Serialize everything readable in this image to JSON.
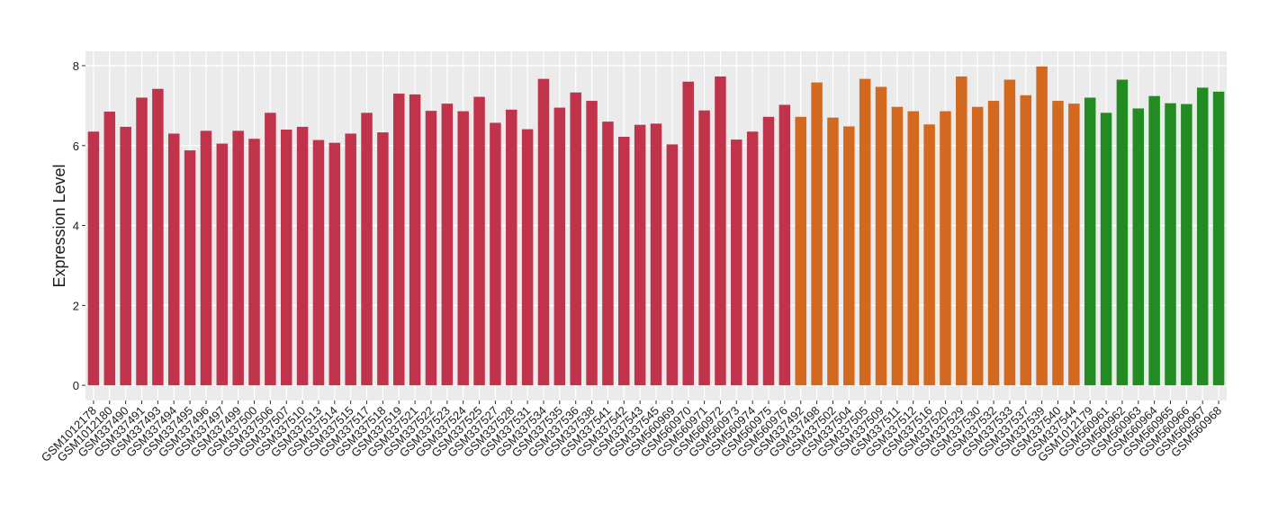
{
  "chart_data": {
    "type": "bar",
    "y_label": "Expression Level",
    "categories": [
      "GSM1012178",
      "GSM1012180",
      "GSM337490",
      "GSM337491",
      "GSM337493",
      "GSM337494",
      "GSM337495",
      "GSM337496",
      "GSM337497",
      "GSM337499",
      "GSM337500",
      "GSM337506",
      "GSM337507",
      "GSM337510",
      "GSM337513",
      "GSM337514",
      "GSM337515",
      "GSM337517",
      "GSM337518",
      "GSM337519",
      "GSM337521",
      "GSM337522",
      "GSM337523",
      "GSM337524",
      "GSM337525",
      "GSM337527",
      "GSM337528",
      "GSM337531",
      "GSM337534",
      "GSM337535",
      "GSM337536",
      "GSM337538",
      "GSM337541",
      "GSM337542",
      "GSM337543",
      "GSM337545",
      "GSM560969",
      "GSM560970",
      "GSM560971",
      "GSM560972",
      "GSM560973",
      "GSM560974",
      "GSM560975",
      "GSM560976",
      "GSM337492",
      "GSM337498",
      "GSM337502",
      "GSM337504",
      "GSM337505",
      "GSM337509",
      "GSM337511",
      "GSM337512",
      "GSM337516",
      "GSM337520",
      "GSM337529",
      "GSM337530",
      "GSM337532",
      "GSM337533",
      "GSM337537",
      "GSM337539",
      "GSM337540",
      "GSM337544",
      "GSM1012179",
      "GSM560961",
      "GSM560962",
      "GSM560963",
      "GSM560964",
      "GSM560965",
      "GSM560966",
      "GSM560967",
      "GSM560968"
    ],
    "values": [
      6.35,
      6.85,
      6.47,
      7.2,
      7.42,
      6.3,
      5.88,
      6.37,
      6.05,
      6.37,
      6.17,
      6.82,
      6.4,
      6.47,
      6.14,
      6.07,
      6.3,
      6.82,
      6.33,
      7.3,
      7.28,
      6.87,
      7.05,
      6.86,
      7.22,
      6.57,
      6.9,
      6.41,
      7.67,
      6.95,
      7.33,
      7.12,
      6.6,
      6.22,
      6.52,
      6.55,
      6.03,
      7.6,
      6.88,
      7.73,
      6.15,
      6.35,
      6.72,
      7.02,
      6.72,
      7.58,
      6.7,
      6.48,
      7.67,
      7.47,
      6.97,
      6.86,
      6.53,
      6.86,
      7.73,
      6.97,
      7.12,
      7.65,
      7.26,
      7.98,
      7.12,
      7.05,
      7.2,
      6.82,
      7.65,
      6.93,
      7.24,
      7.06,
      7.04,
      7.45,
      7.35
    ],
    "colors": [
      "#c0334a",
      "#c0334a",
      "#c0334a",
      "#c0334a",
      "#c0334a",
      "#c0334a",
      "#c0334a",
      "#c0334a",
      "#c0334a",
      "#c0334a",
      "#c0334a",
      "#c0334a",
      "#c0334a",
      "#c0334a",
      "#c0334a",
      "#c0334a",
      "#c0334a",
      "#c0334a",
      "#c0334a",
      "#c0334a",
      "#c0334a",
      "#c0334a",
      "#c0334a",
      "#c0334a",
      "#c0334a",
      "#c0334a",
      "#c0334a",
      "#c0334a",
      "#c0334a",
      "#c0334a",
      "#c0334a",
      "#c0334a",
      "#c0334a",
      "#c0334a",
      "#c0334a",
      "#c0334a",
      "#c0334a",
      "#c0334a",
      "#c0334a",
      "#c0334a",
      "#c0334a",
      "#c0334a",
      "#c0334a",
      "#c0334a",
      "#d2691e",
      "#d2691e",
      "#d2691e",
      "#d2691e",
      "#d2691e",
      "#d2691e",
      "#d2691e",
      "#d2691e",
      "#d2691e",
      "#d2691e",
      "#d2691e",
      "#d2691e",
      "#d2691e",
      "#d2691e",
      "#d2691e",
      "#d2691e",
      "#d2691e",
      "#d2691e",
      "#228b22",
      "#228b22",
      "#228b22",
      "#228b22",
      "#228b22",
      "#228b22",
      "#228b22",
      "#228b22",
      "#228b22"
    ],
    "ylim": [
      -0.38,
      8.36
    ],
    "yticks": [
      0,
      2,
      4,
      6,
      8
    ],
    "grid": true
  }
}
